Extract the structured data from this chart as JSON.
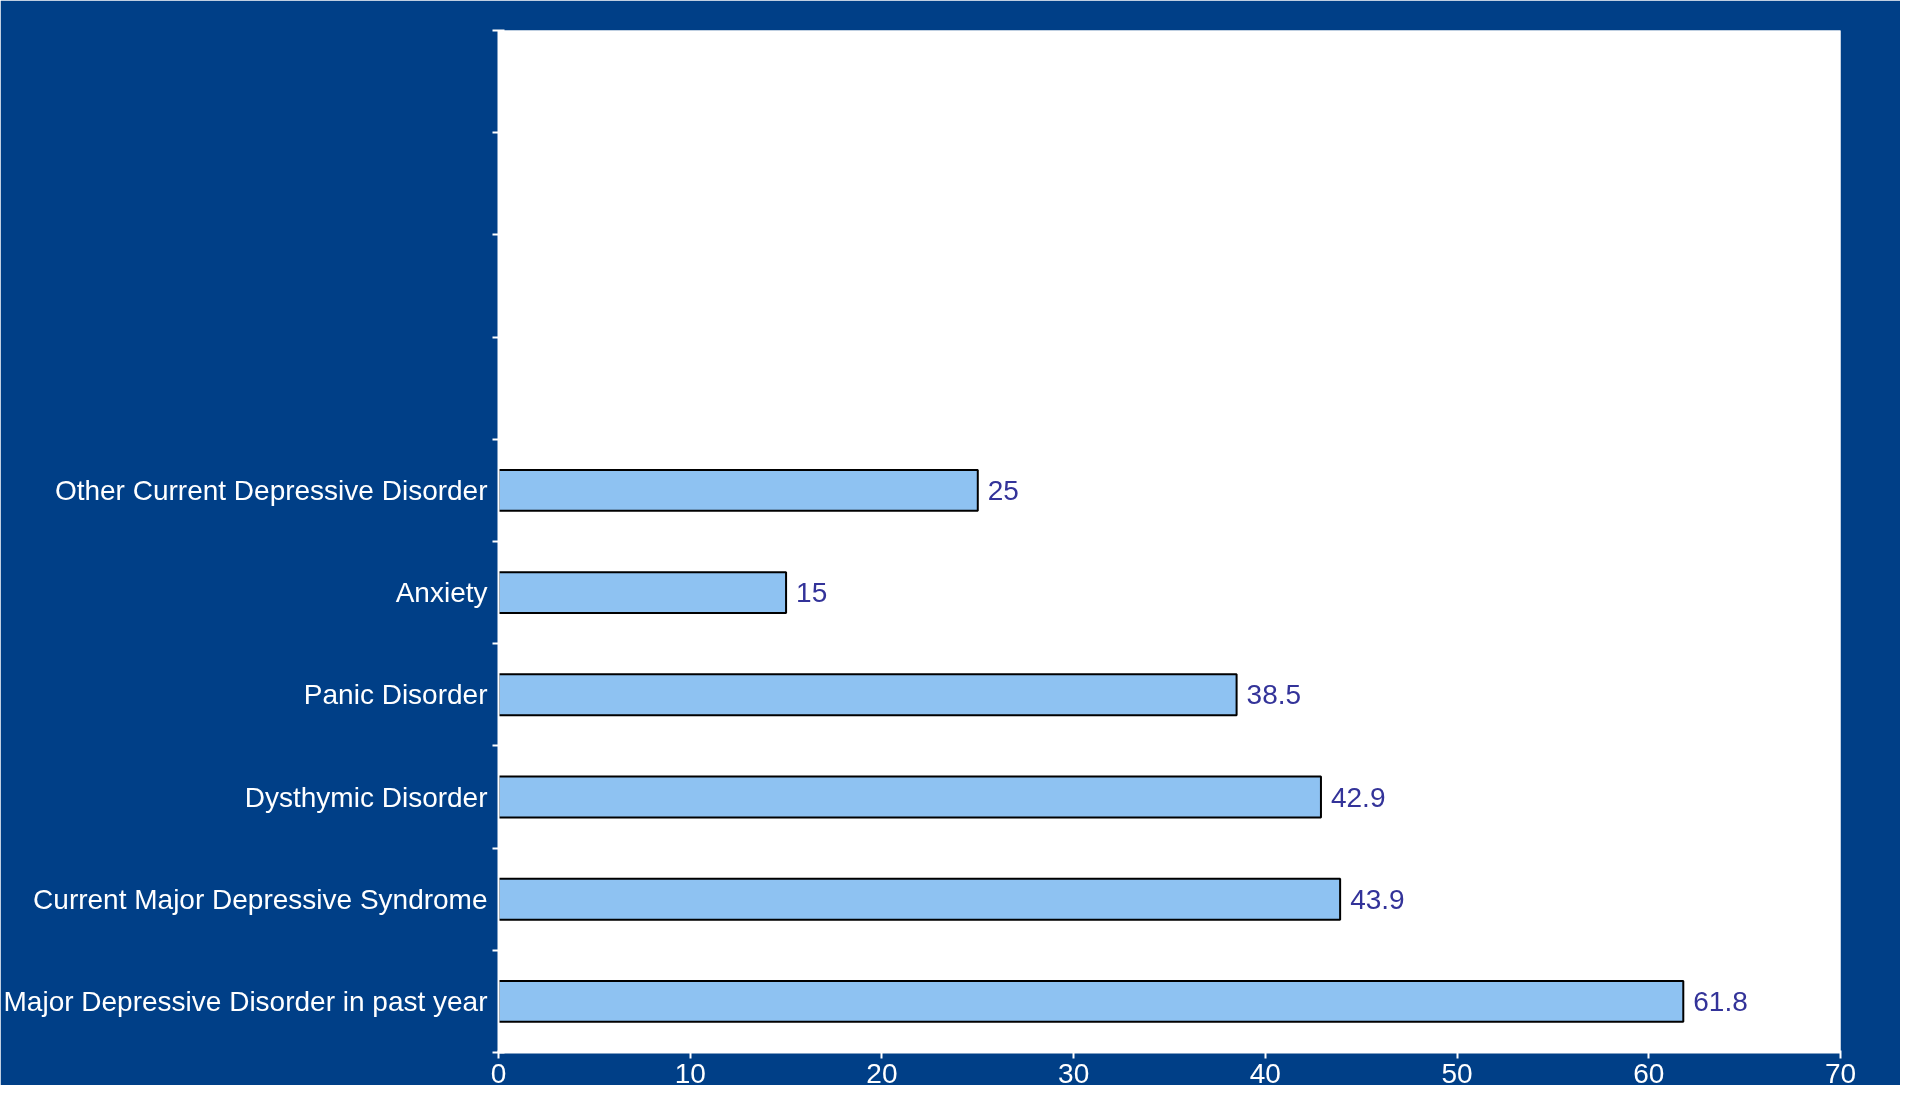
{
  "chart_data": {
    "type": "bar",
    "orientation": "horizontal",
    "categories": [
      null,
      null,
      null,
      null,
      "Other Current Depressive Disorder",
      "Anxiety",
      "Panic Disorder",
      "Dysthymic Disorder",
      "Current Major Depressive Syndrome",
      "Major Depressive Disorder in past year"
    ],
    "values": [
      null,
      null,
      null,
      null,
      25,
      15,
      38.5,
      42.9,
      43.9,
      61.8
    ],
    "color": "#8ec2f2",
    "xlim": [
      0,
      70
    ],
    "xticks": [
      0,
      10,
      20,
      30,
      40,
      50,
      60,
      70
    ],
    "data_labels": true,
    "grid": false
  }
}
